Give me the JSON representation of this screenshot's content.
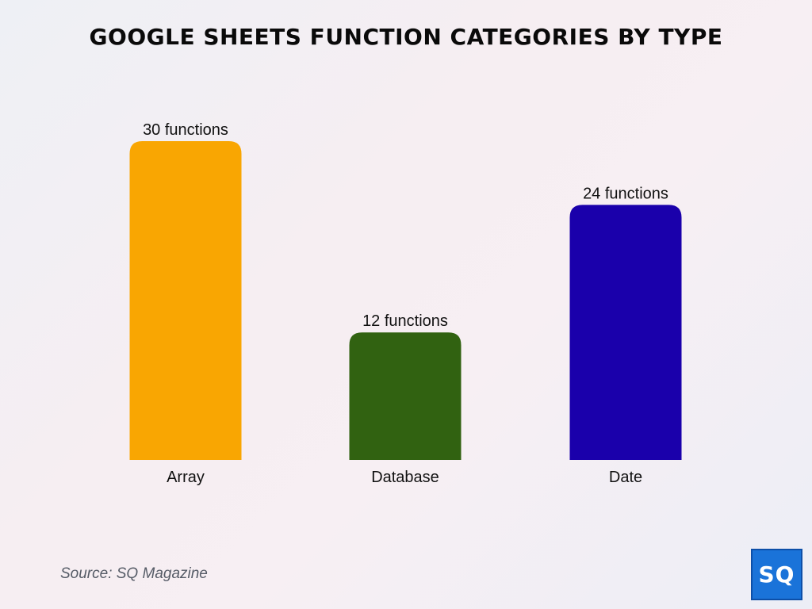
{
  "chart_data": {
    "type": "bar",
    "title": "GOOGLE SHEETS FUNCTION CATEGORIES BY TYPE",
    "categories": [
      "Array",
      "Database",
      "Date"
    ],
    "values": [
      30,
      12,
      24
    ],
    "data_labels": [
      "30 functions",
      "12 functions",
      "24 functions"
    ],
    "colors": [
      "#f9a602",
      "#316211",
      "#1a00ab"
    ],
    "ylim": [
      0,
      30
    ],
    "grid": false,
    "legend": "none"
  },
  "footer": {
    "source": "Source: SQ Magazine",
    "logo_text": "SQ",
    "logo_color": "#1a73d9"
  }
}
